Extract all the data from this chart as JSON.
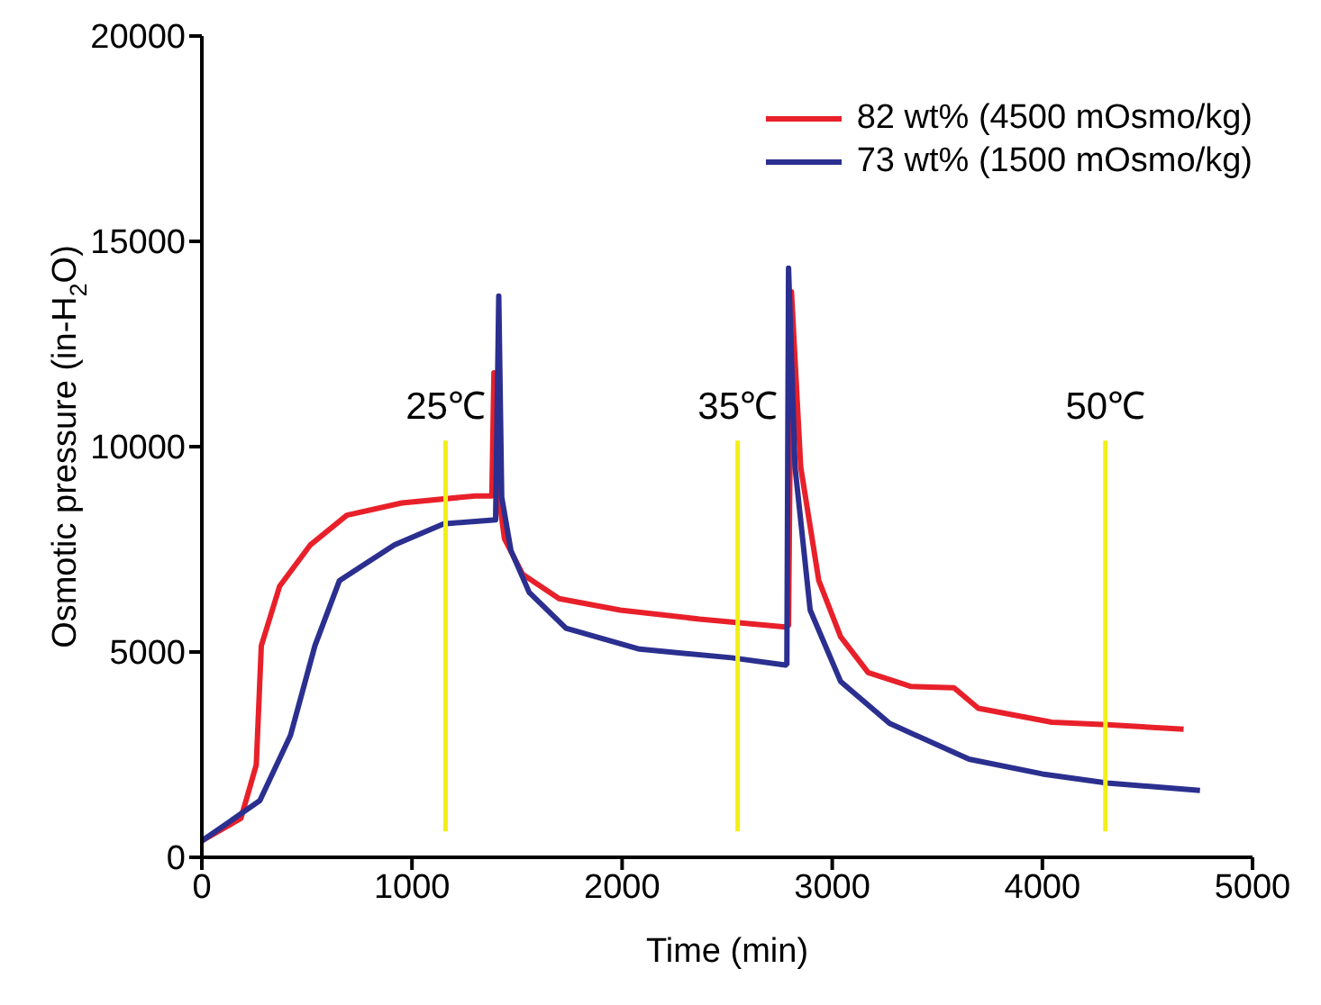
{
  "chart_data": {
    "type": "line",
    "xlabel": "Time (min)",
    "ylabel": "Osmotic pressure (in-H$_{2}$O)",
    "xlim": [
      0,
      5000
    ],
    "xticks": [
      0,
      1000,
      2000,
      3000,
      4000,
      5000
    ],
    "ylim": [
      0,
      20000
    ],
    "yticks": [
      0,
      5000,
      10000,
      15000,
      20000
    ],
    "legend": "top right",
    "marker": "none",
    "line_style": "solid",
    "series": [
      {
        "name": "82 wt% (4500 mOsmo/kg)",
        "color": "#e8202a",
        "x": [
          0,
          186,
          259,
          283,
          370,
          515,
          690,
          952,
          1301,
          1380,
          1390,
          1410,
          1440,
          1527,
          1700,
          1991,
          2369,
          2777,
          2792,
          2806,
          2850,
          2936,
          3040,
          3171,
          3375,
          3579,
          3695,
          4045,
          4308,
          4672
        ],
        "values": [
          400,
          950,
          2250,
          5150,
          6600,
          7600,
          8330,
          8630,
          8800,
          8800,
          11800,
          8900,
          7760,
          6890,
          6300,
          6020,
          5800,
          5610,
          5650,
          13770,
          9500,
          6740,
          5370,
          4500,
          4160,
          4130,
          3630,
          3290,
          3230,
          3120
        ]
      },
      {
        "name": "73 wt% (1500 mOsmo/kg)",
        "color": "#2b2f8f",
        "x": [
          0,
          276,
          422,
          538,
          655,
          742,
          917,
          1150,
          1398,
          1413,
          1427,
          1471,
          1558,
          1733,
          2083,
          2520,
          2777,
          2784,
          2792,
          2823,
          2895,
          3040,
          3273,
          3651,
          4000,
          4308,
          4750
        ],
        "values": [
          400,
          1380,
          2970,
          5150,
          6740,
          7030,
          7610,
          8120,
          8220,
          13670,
          8770,
          7470,
          6450,
          5580,
          5070,
          4860,
          4680,
          4710,
          14350,
          9500,
          6020,
          4280,
          3260,
          2390,
          2030,
          1810,
          1630
        ]
      },
      {
        "color": "#f2ee1a",
        "x": [
          1160,
          1160
        ],
        "values": [
          630,
          10150
        ]
      },
      {
        "color": "#f2ee1a",
        "x": [
          2550,
          2550
        ],
        "values": [
          630,
          10150
        ]
      },
      {
        "color": "#f2ee1a",
        "x": [
          4300,
          4300
        ],
        "values": [
          630,
          10150
        ]
      }
    ],
    "annotations": [
      "25℃",
      "35℃",
      "50℃"
    ]
  }
}
